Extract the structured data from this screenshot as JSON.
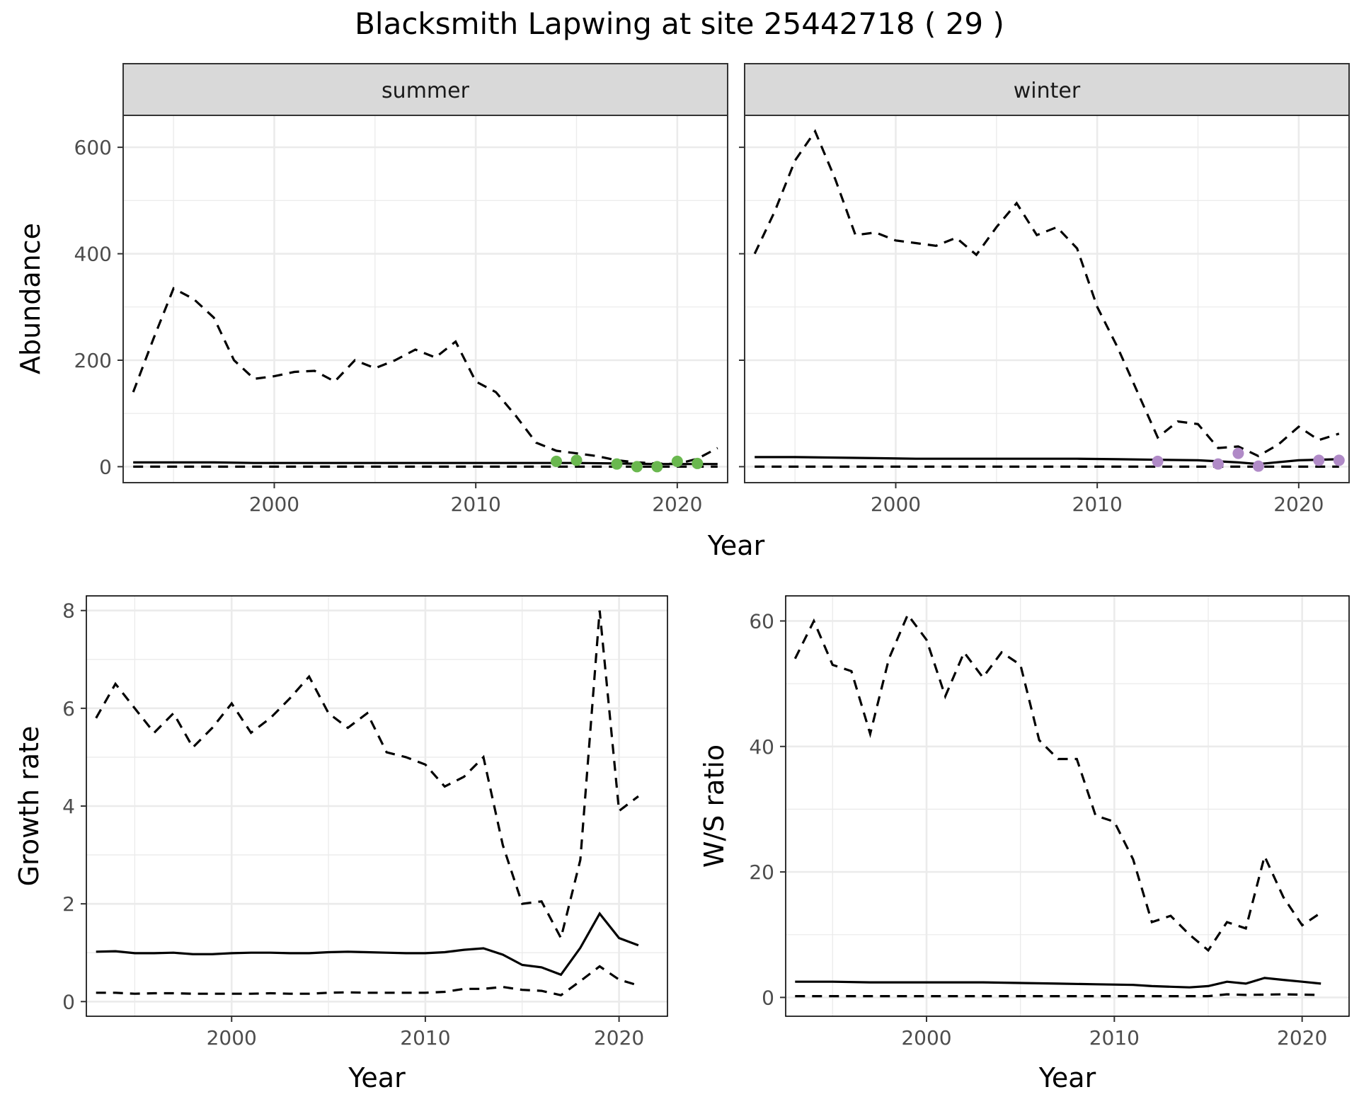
{
  "title": "Blacksmith Lapwing at site 25442718 ( 29 )",
  "chart_data": [
    {
      "type": "line",
      "id": "abundance",
      "facets": [
        "summer",
        "winter"
      ],
      "xlabel": "Year",
      "ylabel": "Abundance",
      "xlim": [
        1992.5,
        2022.5
      ],
      "ylim": [
        -30,
        660
      ],
      "xticks": [
        2000,
        2010,
        2020
      ],
      "yticks": [
        0,
        200,
        400,
        600
      ],
      "grid": true,
      "panels": [
        {
          "facet": "summer",
          "point_color": "#6ab84f",
          "series": [
            {
              "name": "",
              "style": "solid",
              "x": [
                1993,
                1995,
                1997,
                1999,
                2001,
                2003,
                2005,
                2007,
                2009,
                2011,
                2013,
                2015,
                2017,
                2019,
                2021,
                2022
              ],
              "y": [
                8,
                8,
                8,
                7,
                7,
                7,
                7,
                7,
                7,
                7,
                7,
                7,
                6,
                5,
                5,
                5
              ]
            },
            {
              "name": "",
              "style": "dashed",
              "x": [
                1993,
                1994,
                1995,
                1996,
                1997,
                1998,
                1999,
                2000,
                2001,
                2002,
                2003,
                2004,
                2005,
                2006,
                2007,
                2008,
                2009,
                2010,
                2011,
                2012,
                2013,
                2014,
                2015,
                2016,
                2017,
                2018,
                2019,
                2020,
                2021,
                2022
              ],
              "y": [
                140,
                240,
                335,
                315,
                280,
                200,
                165,
                170,
                178,
                180,
                160,
                200,
                185,
                200,
                220,
                205,
                235,
                160,
                140,
                95,
                45,
                30,
                25,
                20,
                12,
                8,
                6,
                5,
                15,
                35
              ]
            },
            {
              "name": "",
              "style": "dashed",
              "x": [
                1993,
                2022
              ],
              "y": [
                0,
                0
              ]
            }
          ],
          "points": {
            "x": [
              2014,
              2015,
              2017,
              2018,
              2019,
              2020,
              2021
            ],
            "y": [
              10,
              12,
              5,
              0,
              0,
              10,
              6
            ]
          }
        },
        {
          "facet": "winter",
          "point_color": "#b08ac7",
          "series": [
            {
              "name": "",
              "style": "solid",
              "x": [
                1993,
                1995,
                1997,
                1999,
                2001,
                2003,
                2005,
                2007,
                2009,
                2011,
                2013,
                2015,
                2017,
                2018,
                2020,
                2022
              ],
              "y": [
                18,
                18,
                17,
                16,
                15,
                15,
                15,
                15,
                15,
                14,
                13,
                12,
                8,
                5,
                12,
                14
              ]
            },
            {
              "name": "",
              "style": "dashed",
              "x": [
                1993,
                1994,
                1995,
                1996,
                1997,
                1998,
                1999,
                2000,
                2001,
                2002,
                2003,
                2004,
                2005,
                2006,
                2007,
                2008,
                2009,
                2010,
                2011,
                2012,
                2013,
                2014,
                2015,
                2016,
                2017,
                2018,
                2019,
                2020,
                2021,
                2022
              ],
              "y": [
                400,
                480,
                575,
                630,
                540,
                435,
                440,
                425,
                420,
                415,
                430,
                398,
                450,
                495,
                435,
                450,
                410,
                300,
                225,
                140,
                55,
                85,
                80,
                35,
                38,
                20,
                42,
                75,
                50,
                62
              ]
            },
            {
              "name": "",
              "style": "dashed",
              "x": [
                1993,
                2022
              ],
              "y": [
                0,
                0
              ]
            }
          ],
          "points": {
            "x": [
              2013,
              2016,
              2017,
              2018,
              2021,
              2022
            ],
            "y": [
              10,
              5,
              25,
              1,
              12,
              12
            ]
          }
        }
      ]
    },
    {
      "type": "line",
      "id": "growth",
      "xlabel": "Year",
      "ylabel": "Growth rate",
      "xlim": [
        1992.5,
        2022.5
      ],
      "ylim": [
        -0.3,
        8.3
      ],
      "xticks": [
        2000,
        2010,
        2020
      ],
      "yticks": [
        0,
        2,
        4,
        6,
        8
      ],
      "grid": true,
      "series": [
        {
          "name": "",
          "style": "solid",
          "x": [
            1993,
            1994,
            1995,
            1996,
            1997,
            1998,
            1999,
            2000,
            2001,
            2002,
            2003,
            2004,
            2005,
            2006,
            2007,
            2008,
            2009,
            2010,
            2011,
            2012,
            2013,
            2014,
            2015,
            2016,
            2017,
            2018,
            2019,
            2020,
            2021
          ],
          "y": [
            1.02,
            1.03,
            0.99,
            0.99,
            1.0,
            0.97,
            0.97,
            0.99,
            1.0,
            1.0,
            0.99,
            0.99,
            1.01,
            1.02,
            1.01,
            1.0,
            0.99,
            0.99,
            1.01,
            1.06,
            1.09,
            0.96,
            0.75,
            0.7,
            0.55,
            1.1,
            1.8,
            1.3,
            1.15
          ]
        },
        {
          "name": "",
          "style": "dashed",
          "x": [
            1993,
            1994,
            1995,
            1996,
            1997,
            1998,
            1999,
            2000,
            2001,
            2002,
            2003,
            2004,
            2005,
            2006,
            2007,
            2008,
            2009,
            2010,
            2011,
            2012,
            2013,
            2014,
            2015,
            2016,
            2017,
            2018,
            2019,
            2020,
            2021
          ],
          "y": [
            5.8,
            6.5,
            6.0,
            5.5,
            5.9,
            5.2,
            5.6,
            6.1,
            5.5,
            5.8,
            6.2,
            6.65,
            5.9,
            5.6,
            5.9,
            5.1,
            5.0,
            4.85,
            4.4,
            4.6,
            5.0,
            3.2,
            2.0,
            2.05,
            1.3,
            2.9,
            8.0,
            3.9,
            4.2
          ]
        },
        {
          "name": "",
          "style": "dashed",
          "x": [
            1993,
            1994,
            1995,
            1996,
            1997,
            1998,
            1999,
            2000,
            2001,
            2002,
            2003,
            2004,
            2005,
            2006,
            2007,
            2008,
            2009,
            2010,
            2011,
            2012,
            2013,
            2014,
            2015,
            2016,
            2017,
            2018,
            2019,
            2020,
            2021
          ],
          "y": [
            0.18,
            0.18,
            0.16,
            0.17,
            0.17,
            0.16,
            0.16,
            0.16,
            0.16,
            0.17,
            0.16,
            0.16,
            0.18,
            0.19,
            0.18,
            0.18,
            0.18,
            0.18,
            0.2,
            0.26,
            0.26,
            0.3,
            0.24,
            0.22,
            0.13,
            0.42,
            0.72,
            0.45,
            0.33
          ]
        }
      ]
    },
    {
      "type": "line",
      "id": "ratio",
      "xlabel": "Year",
      "ylabel": "W/S ratio",
      "xlim": [
        1992.5,
        2022.5
      ],
      "ylim": [
        -3,
        64
      ],
      "xticks": [
        2000,
        2010,
        2020
      ],
      "yticks": [
        0,
        20,
        40,
        60
      ],
      "grid": true,
      "series": [
        {
          "name": "",
          "style": "solid",
          "x": [
            1993,
            1995,
            1997,
            1999,
            2001,
            2003,
            2005,
            2007,
            2009,
            2011,
            2012,
            2013,
            2014,
            2015,
            2016,
            2017,
            2018,
            2019,
            2020,
            2021
          ],
          "y": [
            2.5,
            2.5,
            2.4,
            2.4,
            2.4,
            2.4,
            2.3,
            2.2,
            2.1,
            2.0,
            1.8,
            1.7,
            1.6,
            1.8,
            2.5,
            2.2,
            3.1,
            2.8,
            2.5,
            2.2
          ]
        },
        {
          "name": "",
          "style": "dashed",
          "x": [
            1993,
            1994,
            1995,
            1996,
            1997,
            1998,
            1999,
            2000,
            2001,
            2002,
            2003,
            2004,
            2005,
            2006,
            2007,
            2008,
            2009,
            2010,
            2011,
            2012,
            2013,
            2014,
            2015,
            2016,
            2017,
            2018,
            2019,
            2020,
            2021
          ],
          "y": [
            54,
            60,
            53,
            52,
            42,
            54,
            61,
            57,
            48,
            55,
            51,
            55,
            53,
            41,
            38,
            38,
            29,
            28,
            22,
            12,
            13,
            10,
            7.5,
            12,
            11,
            22.5,
            16,
            11.5,
            13.5
          ]
        },
        {
          "name": "",
          "style": "dashed",
          "x": [
            1993,
            1995,
            1997,
            1999,
            2001,
            2003,
            2005,
            2007,
            2009,
            2011,
            2013,
            2015,
            2016,
            2017,
            2019,
            2021
          ],
          "y": [
            0.2,
            0.2,
            0.2,
            0.2,
            0.2,
            0.2,
            0.2,
            0.2,
            0.2,
            0.2,
            0.2,
            0.2,
            0.5,
            0.4,
            0.5,
            0.4
          ]
        }
      ]
    }
  ]
}
